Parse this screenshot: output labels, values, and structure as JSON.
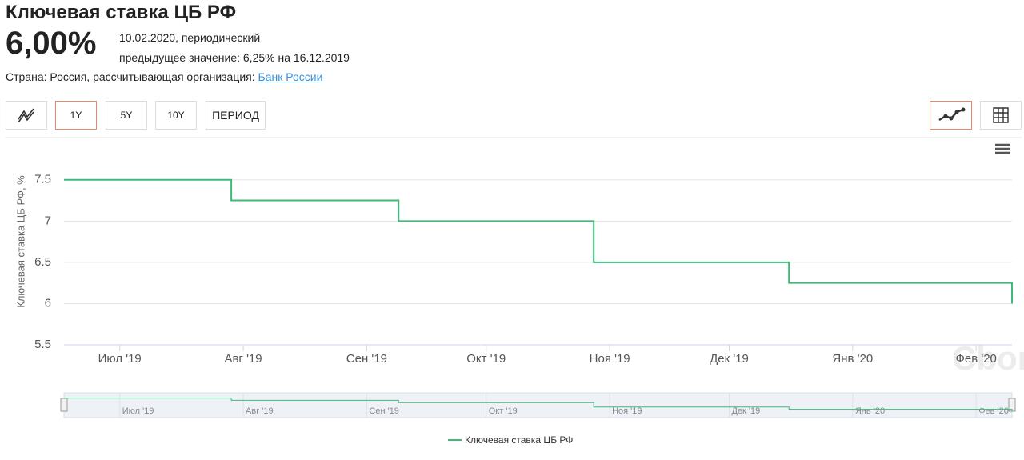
{
  "header": {
    "title": "Ключевая ставка ЦБ РФ",
    "value": "6,00%",
    "date_line": "10.02.2020, периодический",
    "previous_line": "предыдущее значение: 6,25% на 16.12.2019",
    "country_line": "Страна: Россия, рассчитывающая организация:",
    "organization_link": "Банк России"
  },
  "buttons": [
    "1Y",
    "5Y",
    "10Y",
    "ПЕРИОД"
  ],
  "watermark": "Cbonds",
  "chart_data": {
    "type": "step-line",
    "y_label": "Ключевая ставка ЦБ РФ, %",
    "x": [
      "2019-06-17",
      "2019-07-29",
      "2019-09-09",
      "2019-10-28",
      "2019-12-16",
      "2020-02-10"
    ],
    "series": [
      {
        "name": "Ключевая ставка ЦБ РФ",
        "color": "#3dba7a",
        "values": [
          7.5,
          7.25,
          7,
          6.5,
          6.25,
          6
        ]
      }
    ],
    "xlim": [
      "2019-06-17",
      "2020-02-10"
    ],
    "xticks": [
      {
        "value": "2019-07-01",
        "label": "Июл '19"
      },
      {
        "value": "2019-08-01",
        "label": "Авг '19"
      },
      {
        "value": "2019-09-01",
        "label": "Сен '19"
      },
      {
        "value": "2019-10-01",
        "label": "Окт '19"
      },
      {
        "value": "2019-11-01",
        "label": "Ноя '19"
      },
      {
        "value": "2019-12-01",
        "label": "Дек '19"
      },
      {
        "value": "2020-01-01",
        "label": "Янв '20"
      },
      {
        "value": "2020-02-01",
        "label": "Фев '20"
      }
    ],
    "ylim": [
      5.5,
      7.75
    ],
    "yticks": [
      5.5,
      6,
      6.5,
      7,
      7.5
    ],
    "grid": true
  }
}
